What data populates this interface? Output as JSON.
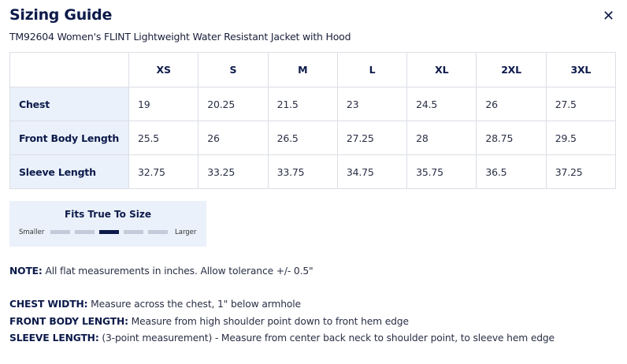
{
  "header": {
    "title": "Sizing Guide",
    "close_icon": "close-icon",
    "subtitle": "TM92604  Women's FLINT Lightweight Water Resistant Jacket with Hood"
  },
  "table": {
    "sizes": [
      "XS",
      "S",
      "M",
      "L",
      "XL",
      "2XL",
      "3XL"
    ],
    "rows": [
      {
        "label": "Chest",
        "values": [
          "19",
          "20.25",
          "21.5",
          "23",
          "24.5",
          "26",
          "27.5"
        ]
      },
      {
        "label": "Front Body Length",
        "values": [
          "25.5",
          "26",
          "26.5",
          "27.25",
          "28",
          "28.75",
          "29.5"
        ]
      },
      {
        "label": "Sleeve Length",
        "values": [
          "32.75",
          "33.25",
          "33.75",
          "34.75",
          "35.75",
          "36.5",
          "37.25"
        ]
      }
    ]
  },
  "fit": {
    "title": "Fits True To Size",
    "left": "Smaller",
    "right": "Larger",
    "segments": 5,
    "selected_index": 2,
    "colors": {
      "active": "#0c1a4a",
      "inactive": "#c3cad9"
    }
  },
  "notes": [
    {
      "label": "NOTE:",
      "text": " All flat measurements in inches.  Allow tolerance +/- 0.5\""
    },
    {
      "label": "CHEST WIDTH:",
      "text": " Measure across the chest, 1\" below armhole"
    },
    {
      "label": "FRONT BODY LENGTH:",
      "text": " Measure from high shoulder point down to front hem edge"
    },
    {
      "label": "SLEEVE LENGTH:",
      "text": " (3-point measurement) - Measure from center back neck to shoulder point, to sleeve hem edge"
    }
  ]
}
